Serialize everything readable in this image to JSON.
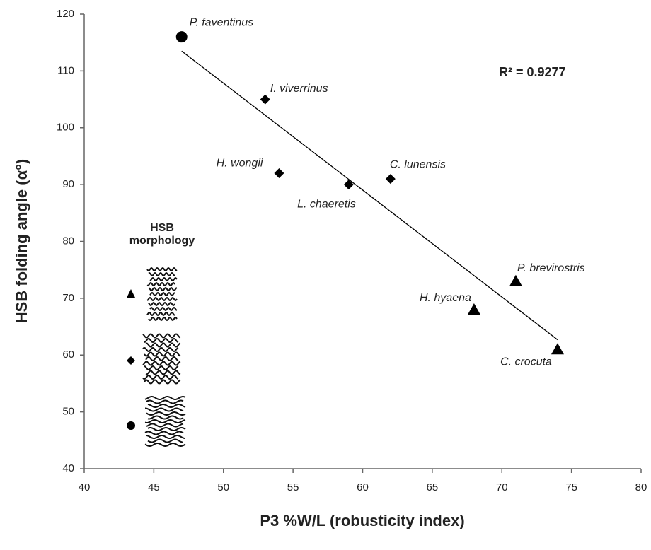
{
  "chart_data": {
    "type": "scatter",
    "x_label": "P3 %W/L (robusticity index)",
    "y_label": "HSB folding angle (α°)",
    "annotation": "R² = 0.9277",
    "legend_title": [
      "HSB",
      "morphology"
    ],
    "xlim": [
      40,
      80
    ],
    "xticks": [
      40,
      45,
      50,
      55,
      60,
      65,
      70,
      75,
      80
    ],
    "ylim": [
      40,
      120
    ],
    "yticks": [
      40,
      50,
      60,
      70,
      80,
      90,
      100,
      110,
      120
    ],
    "series": [
      {
        "marker": "circle",
        "color": "#000000",
        "x": [
          47
        ],
        "y": [
          116
        ],
        "labels": [
          "P. faventinus"
        ]
      },
      {
        "marker": "diamond",
        "color": "#000000",
        "x": [
          53,
          54,
          59,
          62
        ],
        "y": [
          105,
          92,
          90,
          91
        ],
        "labels": [
          "I. viverrinus",
          "H. wongii",
          "L. chaeretis",
          "C. lunensis"
        ]
      },
      {
        "marker": "triangle",
        "color": "#000000",
        "x": [
          68,
          71,
          74
        ],
        "y": [
          68,
          73,
          61
        ],
        "labels": [
          "H. hyaena",
          "P. brevirostris",
          "C. crocuta"
        ]
      }
    ],
    "trendline": {
      "color": "#000000",
      "x": [
        47,
        74
      ],
      "y": [
        113.5,
        62.7
      ]
    }
  }
}
